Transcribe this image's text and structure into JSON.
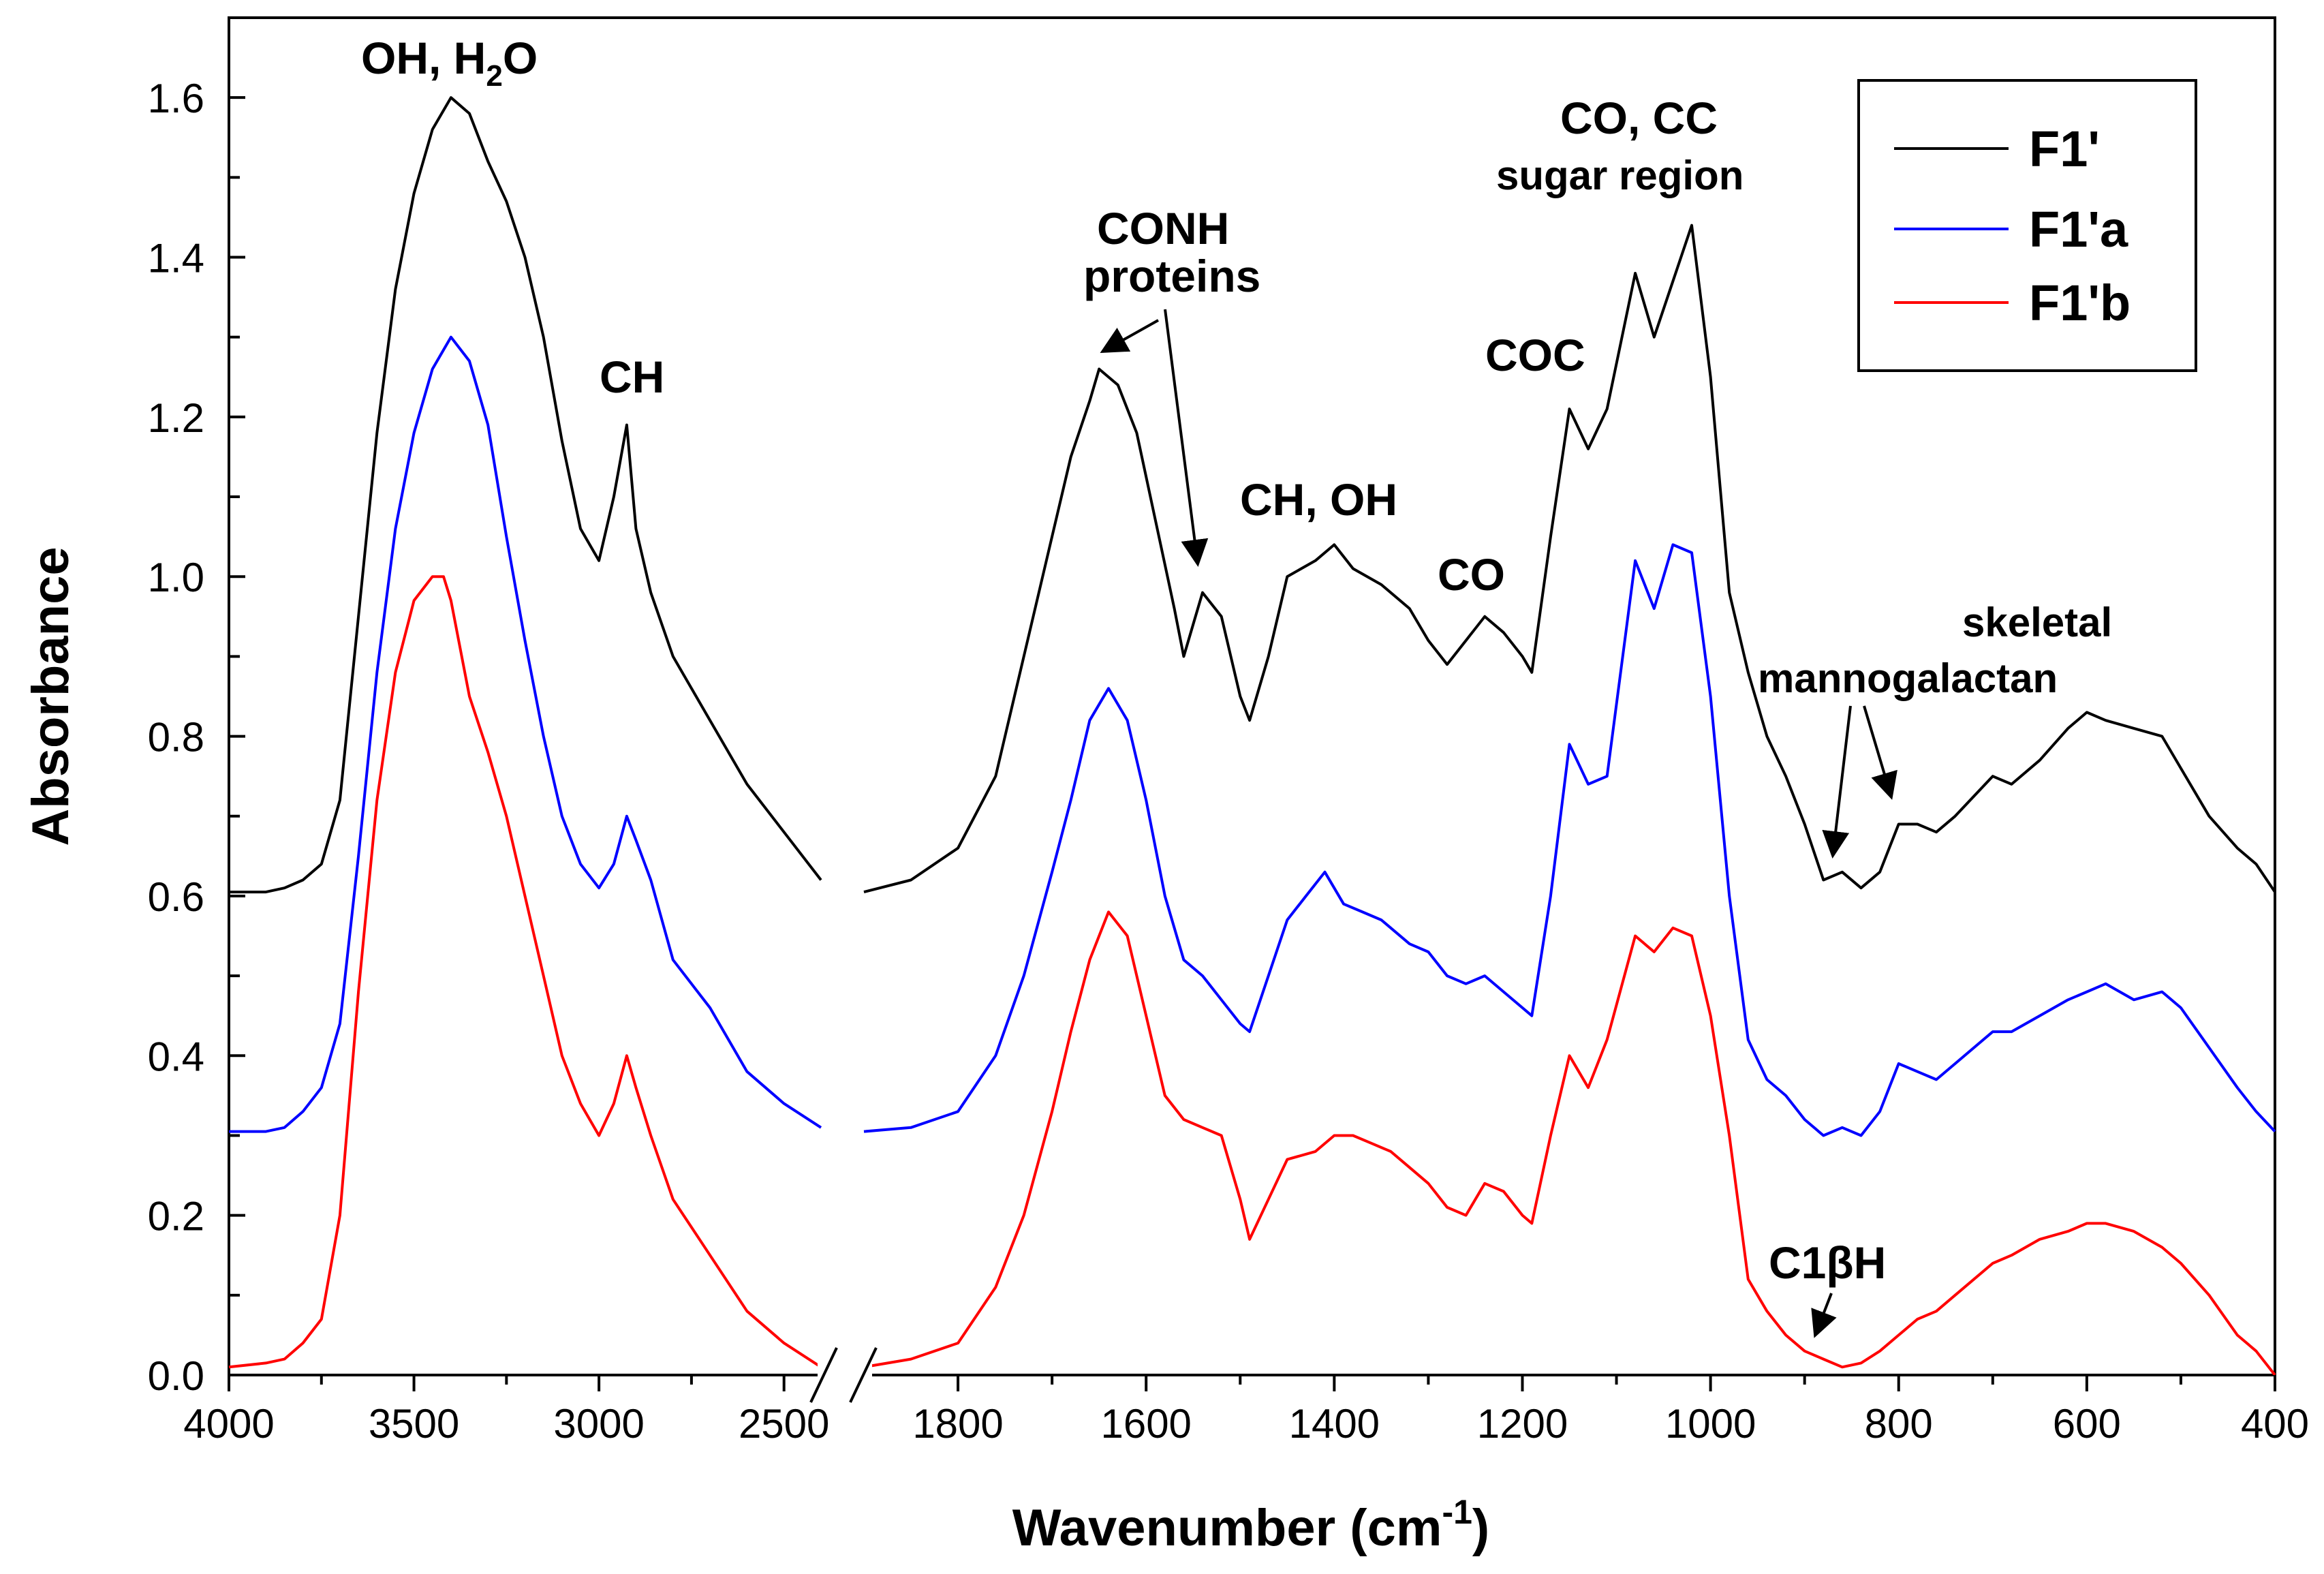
{
  "chart_data": {
    "type": "line",
    "title": "",
    "xlabel": "Wavenumber (cm",
    "xlabel_sup": "-1",
    "xlabel_tail": ")",
    "ylabel": "Absorbance",
    "ylim": [
      0.0,
      1.7
    ],
    "x_axis_break": [
      2400,
      1900
    ],
    "x_segments": [
      [
        4000,
        2400
      ],
      [
        1900,
        400
      ]
    ],
    "x_ticks": [
      "4000",
      "3500",
      "3000",
      "2500",
      "1800",
      "1600",
      "1400",
      "1200",
      "1000",
      "800",
      "600",
      "400"
    ],
    "y_ticks": [
      "0.0",
      "0.2",
      "0.4",
      "0.6",
      "0.8",
      "1.0",
      "1.2",
      "1.4",
      "1.6"
    ],
    "legend": {
      "position": "top-right",
      "entries": [
        "F1'",
        "F1'a",
        "F1'b"
      ]
    },
    "series": [
      {
        "name": "F1'",
        "color": "#000000",
        "points": [
          [
            4000,
            0.605
          ],
          [
            3900,
            0.605
          ],
          [
            3850,
            0.61
          ],
          [
            3800,
            0.62
          ],
          [
            3750,
            0.64
          ],
          [
            3700,
            0.72
          ],
          [
            3650,
            0.95
          ],
          [
            3600,
            1.18
          ],
          [
            3550,
            1.36
          ],
          [
            3500,
            1.48
          ],
          [
            3450,
            1.56
          ],
          [
            3400,
            1.6
          ],
          [
            3350,
            1.58
          ],
          [
            3300,
            1.52
          ],
          [
            3250,
            1.47
          ],
          [
            3200,
            1.4
          ],
          [
            3150,
            1.3
          ],
          [
            3100,
            1.17
          ],
          [
            3050,
            1.06
          ],
          [
            3000,
            1.02
          ],
          [
            2960,
            1.1
          ],
          [
            2925,
            1.19
          ],
          [
            2900,
            1.06
          ],
          [
            2860,
            0.98
          ],
          [
            2800,
            0.9
          ],
          [
            2700,
            0.82
          ],
          [
            2600,
            0.74
          ],
          [
            2500,
            0.68
          ],
          [
            2400,
            0.62
          ],
          [
            1900,
            0.605
          ],
          [
            1850,
            0.62
          ],
          [
            1800,
            0.66
          ],
          [
            1760,
            0.75
          ],
          [
            1730,
            0.9
          ],
          [
            1700,
            1.05
          ],
          [
            1680,
            1.15
          ],
          [
            1660,
            1.22
          ],
          [
            1650,
            1.26
          ],
          [
            1630,
            1.24
          ],
          [
            1610,
            1.18
          ],
          [
            1590,
            1.07
          ],
          [
            1570,
            0.96
          ],
          [
            1560,
            0.9
          ],
          [
            1550,
            0.94
          ],
          [
            1540,
            0.98
          ],
          [
            1520,
            0.95
          ],
          [
            1500,
            0.85
          ],
          [
            1490,
            0.82
          ],
          [
            1470,
            0.9
          ],
          [
            1450,
            1.0
          ],
          [
            1420,
            1.02
          ],
          [
            1400,
            1.04
          ],
          [
            1380,
            1.01
          ],
          [
            1350,
            0.99
          ],
          [
            1320,
            0.96
          ],
          [
            1300,
            0.92
          ],
          [
            1280,
            0.89
          ],
          [
            1260,
            0.92
          ],
          [
            1240,
            0.95
          ],
          [
            1220,
            0.93
          ],
          [
            1200,
            0.9
          ],
          [
            1190,
            0.88
          ],
          [
            1170,
            1.05
          ],
          [
            1150,
            1.21
          ],
          [
            1130,
            1.16
          ],
          [
            1110,
            1.21
          ],
          [
            1080,
            1.38
          ],
          [
            1060,
            1.3
          ],
          [
            1040,
            1.37
          ],
          [
            1020,
            1.44
          ],
          [
            1000,
            1.25
          ],
          [
            980,
            0.98
          ],
          [
            960,
            0.88
          ],
          [
            940,
            0.8
          ],
          [
            920,
            0.75
          ],
          [
            900,
            0.69
          ],
          [
            880,
            0.62
          ],
          [
            860,
            0.63
          ],
          [
            840,
            0.61
          ],
          [
            820,
            0.63
          ],
          [
            800,
            0.69
          ],
          [
            780,
            0.69
          ],
          [
            760,
            0.68
          ],
          [
            740,
            0.7
          ],
          [
            700,
            0.75
          ],
          [
            680,
            0.74
          ],
          [
            650,
            0.77
          ],
          [
            620,
            0.81
          ],
          [
            600,
            0.83
          ],
          [
            580,
            0.82
          ],
          [
            550,
            0.81
          ],
          [
            520,
            0.8
          ],
          [
            500,
            0.76
          ],
          [
            470,
            0.7
          ],
          [
            440,
            0.66
          ],
          [
            420,
            0.64
          ],
          [
            400,
            0.605
          ]
        ]
      },
      {
        "name": "F1'a",
        "color": "#0000ff",
        "points": [
          [
            4000,
            0.305
          ],
          [
            3900,
            0.305
          ],
          [
            3850,
            0.31
          ],
          [
            3800,
            0.33
          ],
          [
            3750,
            0.36
          ],
          [
            3700,
            0.44
          ],
          [
            3650,
            0.65
          ],
          [
            3600,
            0.88
          ],
          [
            3550,
            1.06
          ],
          [
            3500,
            1.18
          ],
          [
            3450,
            1.26
          ],
          [
            3400,
            1.3
          ],
          [
            3350,
            1.27
          ],
          [
            3300,
            1.19
          ],
          [
            3250,
            1.05
          ],
          [
            3200,
            0.92
          ],
          [
            3150,
            0.8
          ],
          [
            3100,
            0.7
          ],
          [
            3050,
            0.64
          ],
          [
            3000,
            0.61
          ],
          [
            2960,
            0.64
          ],
          [
            2925,
            0.7
          ],
          [
            2900,
            0.67
          ],
          [
            2860,
            0.62
          ],
          [
            2800,
            0.52
          ],
          [
            2700,
            0.46
          ],
          [
            2600,
            0.38
          ],
          [
            2500,
            0.34
          ],
          [
            2400,
            0.31
          ],
          [
            1900,
            0.305
          ],
          [
            1850,
            0.31
          ],
          [
            1800,
            0.33
          ],
          [
            1760,
            0.4
          ],
          [
            1730,
            0.5
          ],
          [
            1700,
            0.63
          ],
          [
            1680,
            0.72
          ],
          [
            1660,
            0.82
          ],
          [
            1640,
            0.86
          ],
          [
            1620,
            0.82
          ],
          [
            1600,
            0.72
          ],
          [
            1580,
            0.6
          ],
          [
            1560,
            0.52
          ],
          [
            1540,
            0.5
          ],
          [
            1520,
            0.47
          ],
          [
            1500,
            0.44
          ],
          [
            1490,
            0.43
          ],
          [
            1470,
            0.5
          ],
          [
            1450,
            0.57
          ],
          [
            1430,
            0.6
          ],
          [
            1410,
            0.63
          ],
          [
            1390,
            0.59
          ],
          [
            1370,
            0.58
          ],
          [
            1350,
            0.57
          ],
          [
            1320,
            0.54
          ],
          [
            1300,
            0.53
          ],
          [
            1280,
            0.5
          ],
          [
            1260,
            0.49
          ],
          [
            1240,
            0.5
          ],
          [
            1220,
            0.48
          ],
          [
            1200,
            0.46
          ],
          [
            1190,
            0.45
          ],
          [
            1170,
            0.6
          ],
          [
            1150,
            0.79
          ],
          [
            1130,
            0.74
          ],
          [
            1110,
            0.75
          ],
          [
            1080,
            1.02
          ],
          [
            1060,
            0.96
          ],
          [
            1040,
            1.04
          ],
          [
            1020,
            1.03
          ],
          [
            1000,
            0.85
          ],
          [
            980,
            0.6
          ],
          [
            960,
            0.42
          ],
          [
            940,
            0.37
          ],
          [
            920,
            0.35
          ],
          [
            900,
            0.32
          ],
          [
            880,
            0.3
          ],
          [
            860,
            0.31
          ],
          [
            840,
            0.3
          ],
          [
            820,
            0.33
          ],
          [
            800,
            0.39
          ],
          [
            780,
            0.38
          ],
          [
            760,
            0.37
          ],
          [
            740,
            0.39
          ],
          [
            700,
            0.43
          ],
          [
            680,
            0.43
          ],
          [
            650,
            0.45
          ],
          [
            620,
            0.47
          ],
          [
            600,
            0.48
          ],
          [
            580,
            0.49
          ],
          [
            550,
            0.47
          ],
          [
            520,
            0.48
          ],
          [
            500,
            0.46
          ],
          [
            470,
            0.41
          ],
          [
            440,
            0.36
          ],
          [
            420,
            0.33
          ],
          [
            400,
            0.305
          ]
        ]
      },
      {
        "name": "F1'b",
        "color": "#ff0000",
        "points": [
          [
            4000,
            0.01
          ],
          [
            3900,
            0.015
          ],
          [
            3850,
            0.02
          ],
          [
            3800,
            0.04
          ],
          [
            3750,
            0.07
          ],
          [
            3700,
            0.2
          ],
          [
            3650,
            0.48
          ],
          [
            3600,
            0.72
          ],
          [
            3550,
            0.88
          ],
          [
            3500,
            0.97
          ],
          [
            3450,
            1.0
          ],
          [
            3420,
            1.0
          ],
          [
            3400,
            0.97
          ],
          [
            3350,
            0.85
          ],
          [
            3300,
            0.78
          ],
          [
            3250,
            0.7
          ],
          [
            3200,
            0.6
          ],
          [
            3150,
            0.5
          ],
          [
            3100,
            0.4
          ],
          [
            3050,
            0.34
          ],
          [
            3000,
            0.3
          ],
          [
            2960,
            0.34
          ],
          [
            2925,
            0.4
          ],
          [
            2900,
            0.36
          ],
          [
            2860,
            0.3
          ],
          [
            2800,
            0.22
          ],
          [
            2700,
            0.15
          ],
          [
            2600,
            0.08
          ],
          [
            2500,
            0.04
          ],
          [
            2400,
            0.01
          ],
          [
            1900,
            0.01
          ],
          [
            1850,
            0.02
          ],
          [
            1800,
            0.04
          ],
          [
            1760,
            0.11
          ],
          [
            1730,
            0.2
          ],
          [
            1700,
            0.33
          ],
          [
            1680,
            0.43
          ],
          [
            1660,
            0.52
          ],
          [
            1640,
            0.58
          ],
          [
            1620,
            0.55
          ],
          [
            1600,
            0.45
          ],
          [
            1580,
            0.35
          ],
          [
            1560,
            0.32
          ],
          [
            1540,
            0.31
          ],
          [
            1520,
            0.3
          ],
          [
            1500,
            0.22
          ],
          [
            1490,
            0.17
          ],
          [
            1470,
            0.22
          ],
          [
            1450,
            0.27
          ],
          [
            1420,
            0.28
          ],
          [
            1400,
            0.3
          ],
          [
            1380,
            0.3
          ],
          [
            1360,
            0.29
          ],
          [
            1340,
            0.28
          ],
          [
            1320,
            0.26
          ],
          [
            1300,
            0.24
          ],
          [
            1280,
            0.21
          ],
          [
            1260,
            0.2
          ],
          [
            1240,
            0.24
          ],
          [
            1220,
            0.23
          ],
          [
            1200,
            0.2
          ],
          [
            1190,
            0.19
          ],
          [
            1170,
            0.3
          ],
          [
            1150,
            0.4
          ],
          [
            1130,
            0.36
          ],
          [
            1110,
            0.42
          ],
          [
            1080,
            0.55
          ],
          [
            1060,
            0.53
          ],
          [
            1040,
            0.56
          ],
          [
            1020,
            0.55
          ],
          [
            1000,
            0.45
          ],
          [
            980,
            0.3
          ],
          [
            960,
            0.12
          ],
          [
            940,
            0.08
          ],
          [
            920,
            0.05
          ],
          [
            900,
            0.03
          ],
          [
            880,
            0.02
          ],
          [
            860,
            0.01
          ],
          [
            840,
            0.015
          ],
          [
            820,
            0.03
          ],
          [
            800,
            0.05
          ],
          [
            780,
            0.07
          ],
          [
            760,
            0.08
          ],
          [
            740,
            0.1
          ],
          [
            700,
            0.14
          ],
          [
            680,
            0.15
          ],
          [
            650,
            0.17
          ],
          [
            620,
            0.18
          ],
          [
            600,
            0.19
          ],
          [
            580,
            0.19
          ],
          [
            550,
            0.18
          ],
          [
            520,
            0.16
          ],
          [
            500,
            0.14
          ],
          [
            470,
            0.1
          ],
          [
            440,
            0.05
          ],
          [
            420,
            0.03
          ],
          [
            400,
            0.0
          ]
        ]
      }
    ],
    "annotations": [
      {
        "id": "oh",
        "text": "OH, H",
        "sub": "2",
        "tail": "O"
      },
      {
        "id": "ch",
        "text": "CH"
      },
      {
        "id": "conh",
        "text": "CONH"
      },
      {
        "id": "proteins",
        "text": "proteins"
      },
      {
        "id": "choh",
        "text": "CH, OH"
      },
      {
        "id": "co1",
        "text": "CO"
      },
      {
        "id": "coc",
        "text": "COC"
      },
      {
        "id": "cocc",
        "text": "CO, CC"
      },
      {
        "id": "sugar",
        "text": "sugar region"
      },
      {
        "id": "skeletal",
        "text": "skeletal"
      },
      {
        "id": "manno",
        "text": "mannogalactan"
      },
      {
        "id": "c1bh",
        "text": "C1βH"
      }
    ]
  }
}
